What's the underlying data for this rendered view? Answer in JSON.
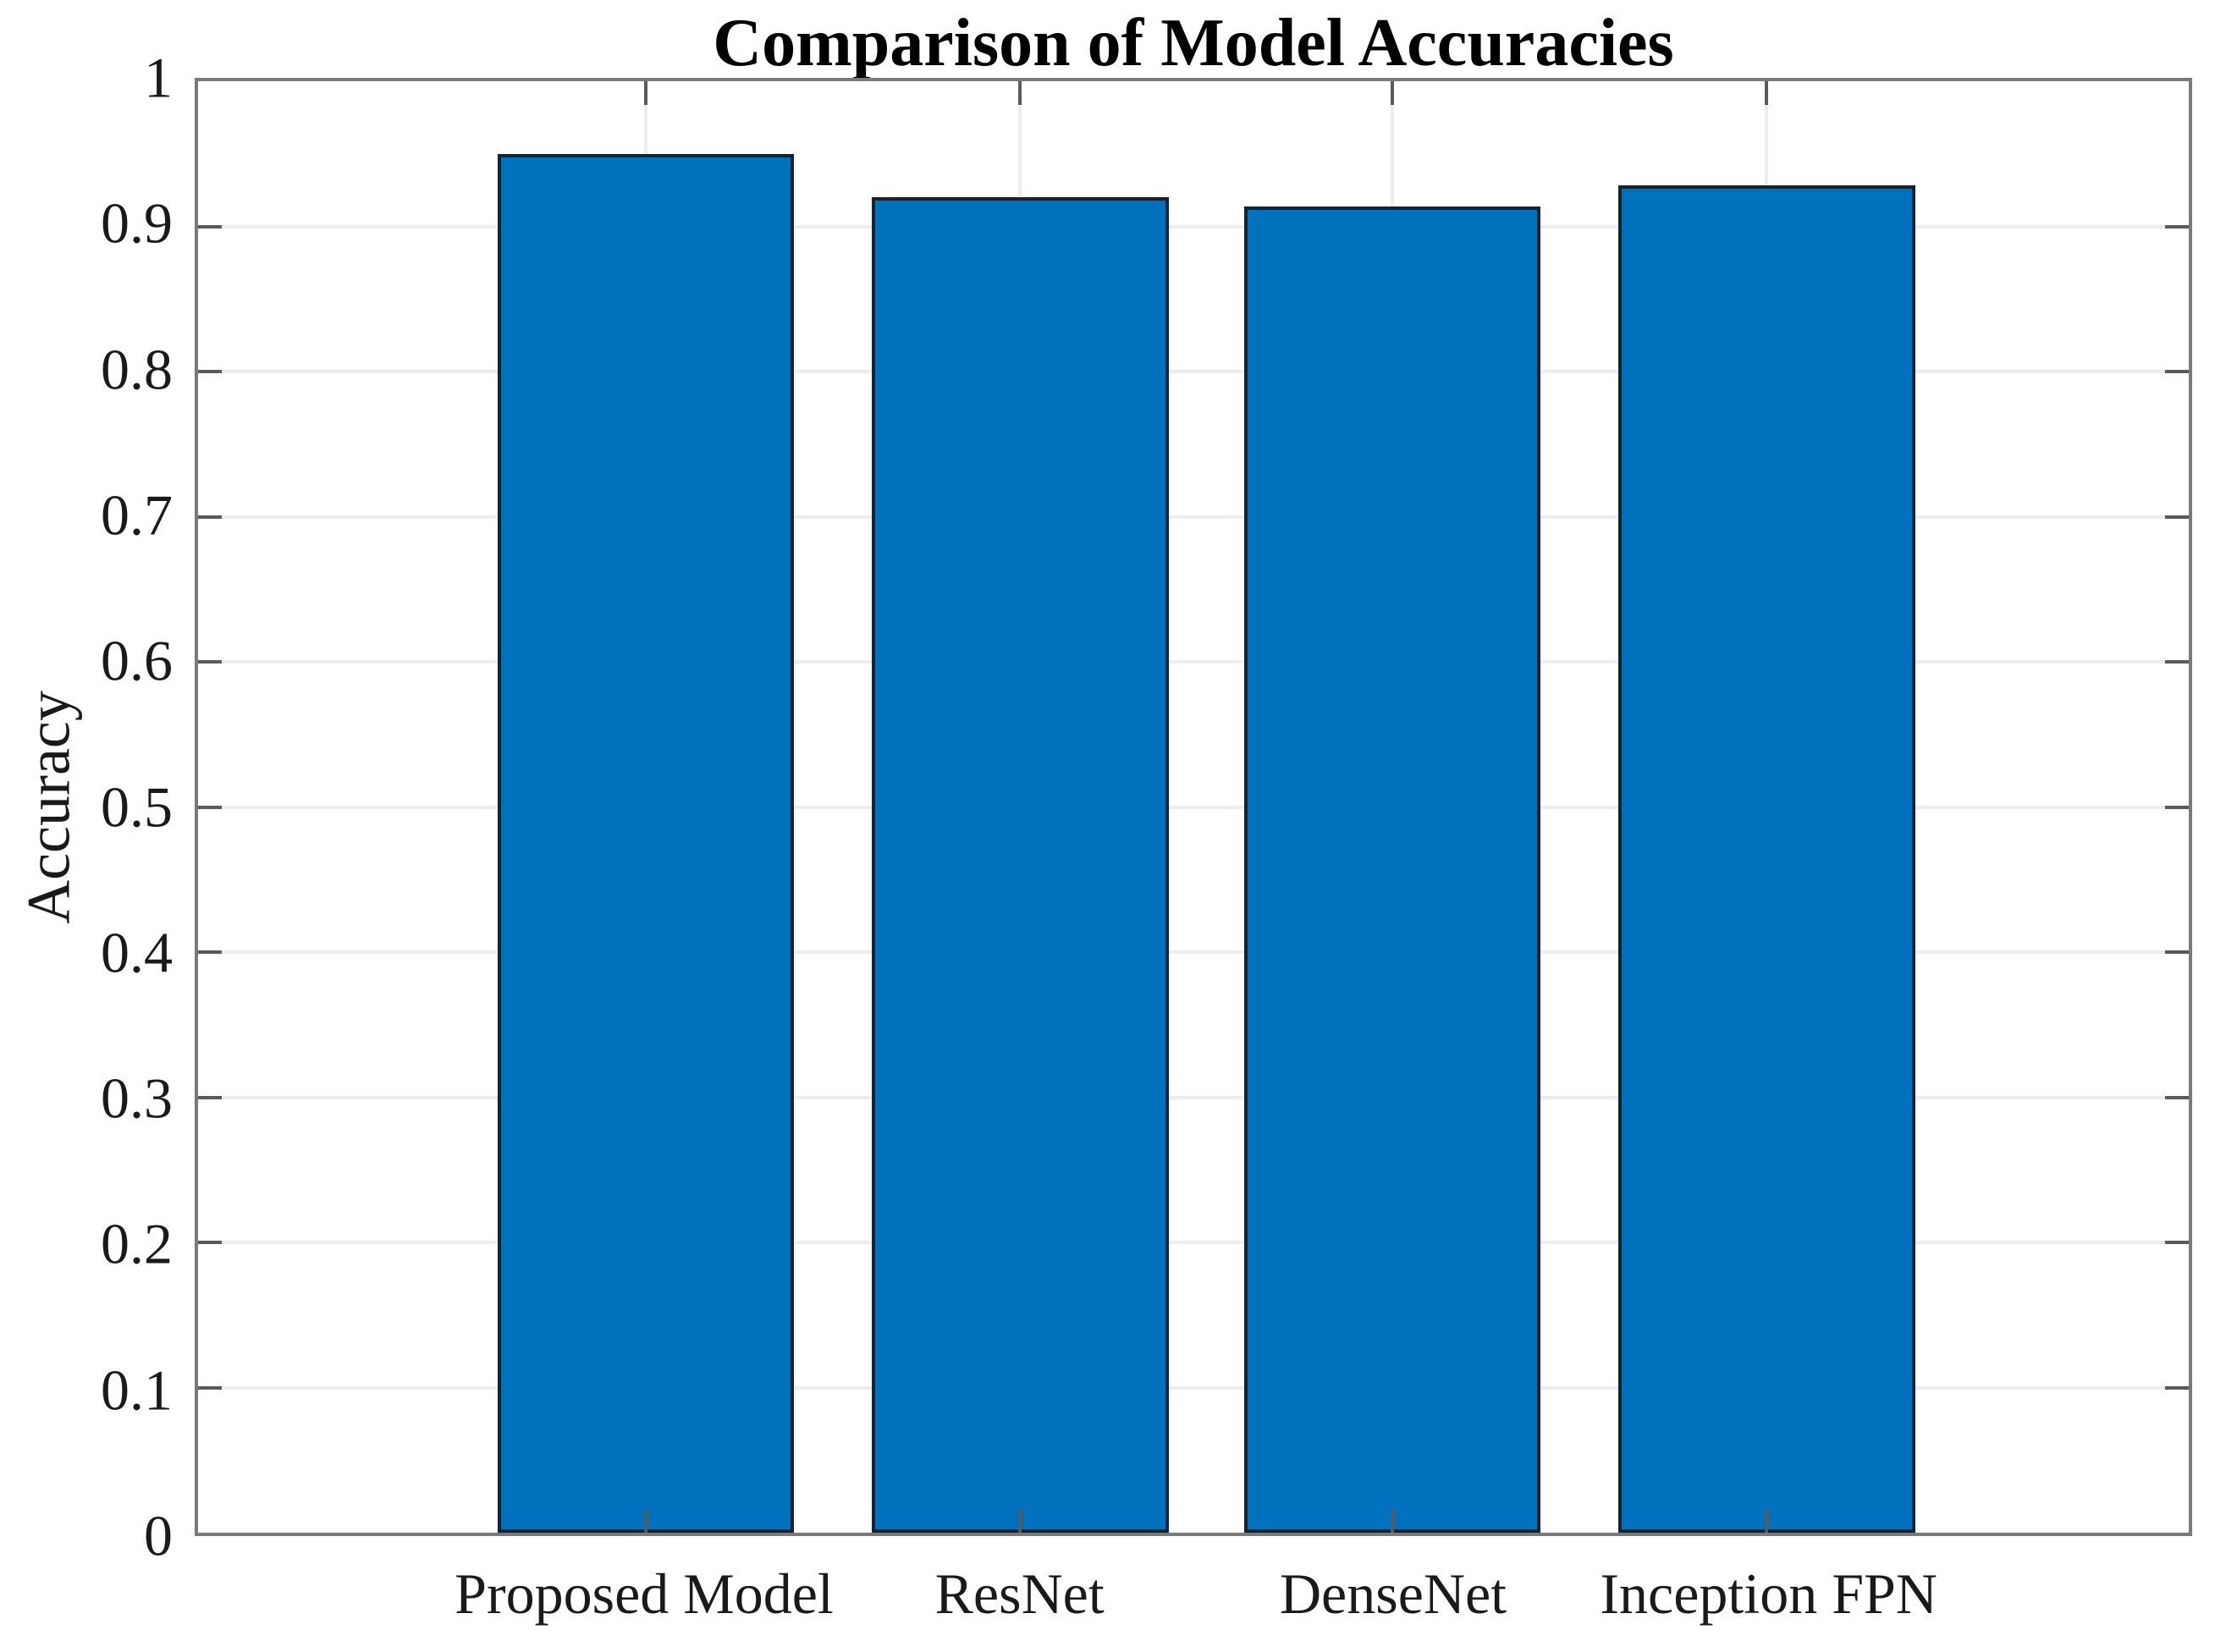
{
  "chart_data": {
    "type": "bar",
    "title": "Comparison of Model Accuracies",
    "xlabel": "",
    "ylabel": "Accuracy",
    "categories": [
      "Proposed Model",
      "ResNet",
      "DenseNet",
      "Inception FPN"
    ],
    "values": [
      0.95,
      0.92,
      0.914,
      0.928
    ],
    "ylim": [
      0,
      1
    ],
    "ytick_step": 0.1,
    "ytick_labels": [
      "0",
      "0.1",
      "0.2",
      "0.3",
      "0.4",
      "0.5",
      "0.6",
      "0.7",
      "0.8",
      "0.9",
      "1"
    ],
    "grid": true,
    "legend_position": "none",
    "colors": {
      "bar_fill": "#0072BD",
      "bar_edge": "#16222C",
      "axis": "#7A7A7A",
      "grid": "#EDEDED",
      "tick": "#5A5A5A",
      "text": "#1A1A1A",
      "title": "#000000"
    },
    "layout": {
      "bar_centers_pct": [
        22.5,
        41.3,
        60.0,
        78.8
      ],
      "bar_width_pct": 14.9
    }
  }
}
